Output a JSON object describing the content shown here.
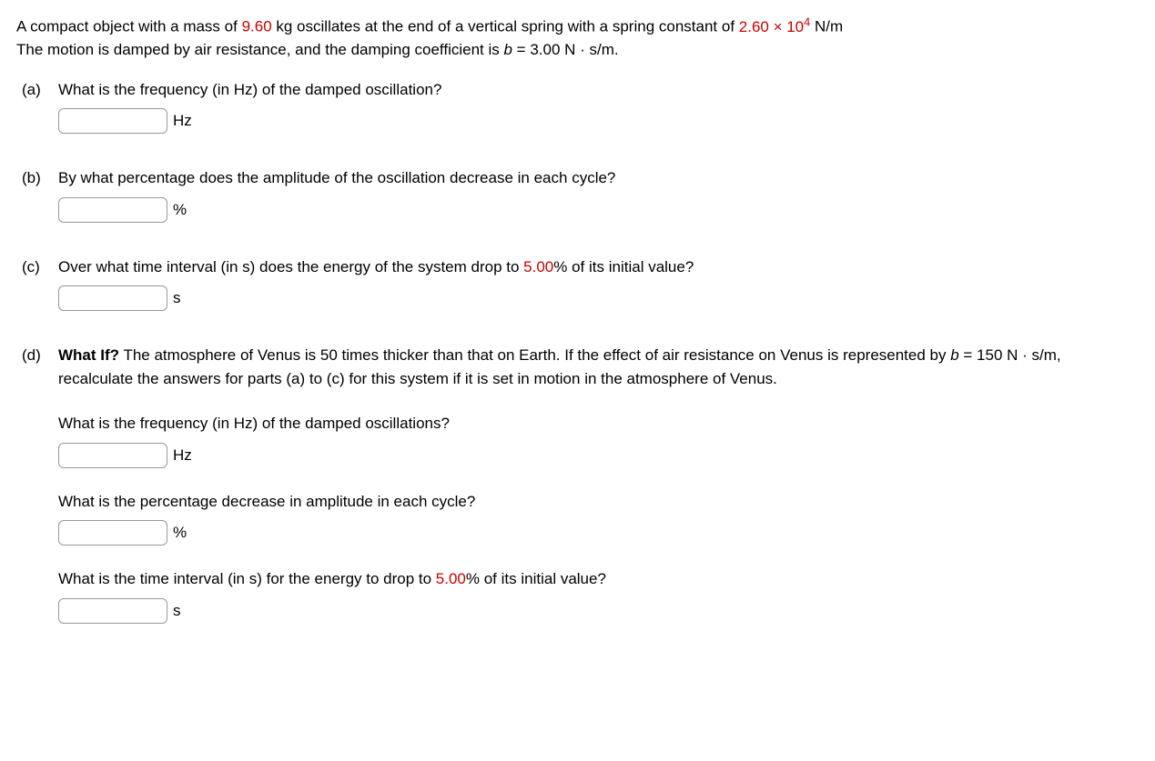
{
  "intro": {
    "text_before_mass": "A compact object with a mass of ",
    "mass": "9.60",
    "text_after_mass": " kg oscillates at the end of a vertical spring with a spring constant of ",
    "spring_constant": "2.60 × 10",
    "spring_exponent": "4",
    "text_after_k": " N/m",
    "line2_before": "The motion is damped by air resistance, and the damping coefficient is ",
    "b_var": "b",
    "eq": " = 3.00 N · s/m."
  },
  "parts": {
    "a": {
      "label": "(a)",
      "question": "What is the frequency (in Hz) of the damped oscillation?",
      "unit": "Hz"
    },
    "b": {
      "label": "(b)",
      "question": "By what percentage does the amplitude of the oscillation decrease in each cycle?",
      "unit": "%"
    },
    "c": {
      "label": "(c)",
      "question_before": "Over what time interval (in s) does the energy of the system drop to ",
      "percent": "5.00",
      "question_after": "% of its initial value?",
      "unit": "s"
    },
    "d": {
      "label": "(d)",
      "whatif": "What If?",
      "intro_before_b": " The atmosphere of Venus is 50 times thicker than that on Earth. If the effect of air resistance on Venus is represented by ",
      "b_var": "b",
      "b_eq": " = 150 N · s/m, recalculate the answers for parts (a) to (c) for this system if it is set in motion in the atmosphere of Venus.",
      "sub1": {
        "question": "What is the frequency (in Hz) of the damped oscillations?",
        "unit": "Hz"
      },
      "sub2": {
        "question": "What is the percentage decrease in amplitude in each cycle?",
        "unit": "%"
      },
      "sub3": {
        "question_before": "What is the time interval (in s) for the energy to drop to ",
        "percent": "5.00",
        "question_after": "% of its initial value?",
        "unit": "s"
      }
    }
  }
}
